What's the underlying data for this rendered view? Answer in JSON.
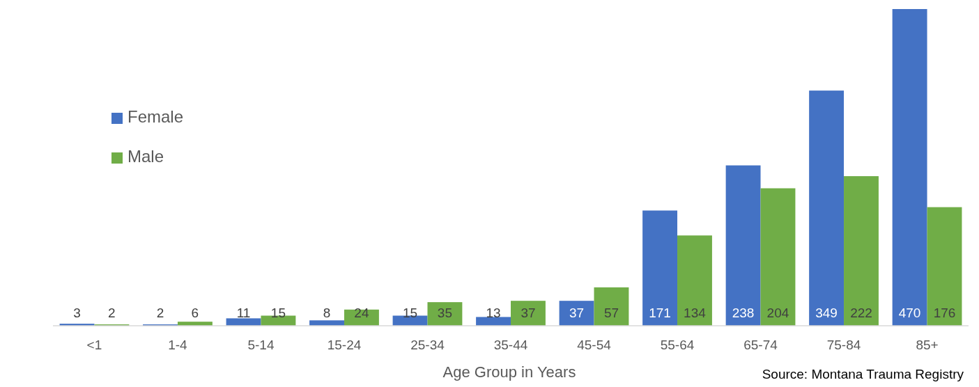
{
  "chart_data": {
    "type": "bar",
    "xlabel": "Age Group in Years",
    "annotations": [
      "Source: Montana Trauma Registry"
    ],
    "categories": [
      "<1",
      "1-4",
      "5-14",
      "15-24",
      "25-34",
      "35-44",
      "45-54",
      "55-64",
      "65-74",
      "75-84",
      "85+"
    ],
    "series": [
      {
        "name": "Female",
        "color": "#4472c4",
        "values": [
          3,
          2,
          11,
          8,
          15,
          13,
          37,
          171,
          238,
          349,
          470
        ]
      },
      {
        "name": "Male",
        "color": "#70ad47",
        "values": [
          2,
          6,
          15,
          24,
          35,
          37,
          57,
          134,
          204,
          222,
          176
        ]
      }
    ],
    "data_labels": true,
    "legend": "top left"
  }
}
